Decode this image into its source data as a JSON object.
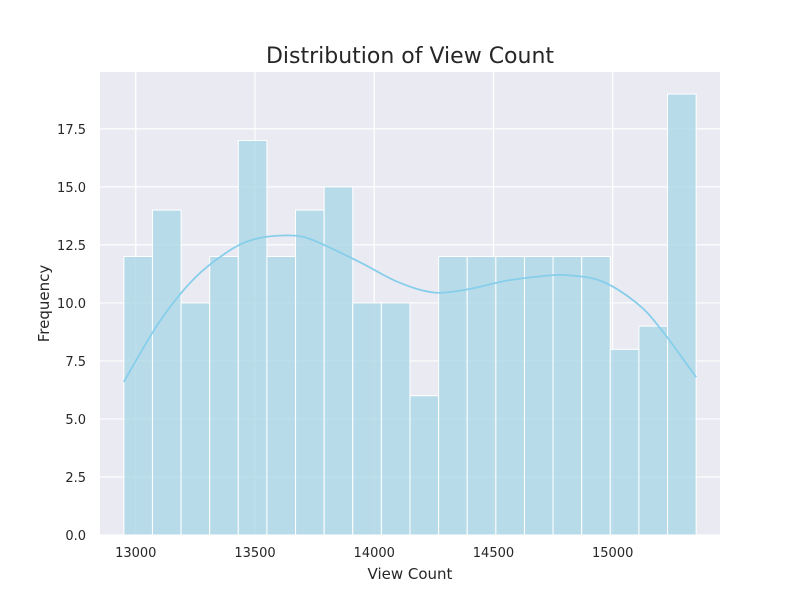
{
  "chart_data": {
    "type": "bar",
    "title": "Distribution of View Count",
    "xlabel": "View Count",
    "ylabel": "Frequency",
    "bins": [
      {
        "x0": 12950,
        "x1": 13070,
        "count": 12
      },
      {
        "x0": 13070,
        "x1": 13190,
        "count": 14
      },
      {
        "x0": 13190,
        "x1": 13310,
        "count": 10
      },
      {
        "x0": 13310,
        "x1": 13430,
        "count": 12
      },
      {
        "x0": 13430,
        "x1": 13550,
        "count": 17
      },
      {
        "x0": 13550,
        "x1": 13670,
        "count": 12
      },
      {
        "x0": 13670,
        "x1": 13790,
        "count": 14
      },
      {
        "x0": 13790,
        "x1": 13910,
        "count": 15
      },
      {
        "x0": 13910,
        "x1": 14030,
        "count": 10
      },
      {
        "x0": 14030,
        "x1": 14150,
        "count": 10
      },
      {
        "x0": 14150,
        "x1": 14270,
        "count": 6
      },
      {
        "x0": 14270,
        "x1": 14390,
        "count": 12
      },
      {
        "x0": 14390,
        "x1": 14510,
        "count": 12
      },
      {
        "x0": 14510,
        "x1": 14630,
        "count": 12
      },
      {
        "x0": 14630,
        "x1": 14750,
        "count": 12
      },
      {
        "x0": 14750,
        "x1": 14870,
        "count": 12
      },
      {
        "x0": 14870,
        "x1": 14990,
        "count": 12
      },
      {
        "x0": 14990,
        "x1": 15110,
        "count": 8
      },
      {
        "x0": 15110,
        "x1": 15230,
        "count": 9
      },
      {
        "x0": 15230,
        "x1": 15350,
        "count": 19
      }
    ],
    "kde": {
      "x": [
        12950,
        13100,
        13250,
        13400,
        13500,
        13600,
        13700,
        13800,
        13950,
        14100,
        14250,
        14400,
        14550,
        14700,
        14800,
        14950,
        15100,
        15200,
        15350
      ],
      "y": [
        6.6,
        9.2,
        11.1,
        12.3,
        12.75,
        12.9,
        12.85,
        12.45,
        11.7,
        10.9,
        10.45,
        10.6,
        10.95,
        11.15,
        11.2,
        10.95,
        10.0,
        8.9,
        6.8
      ]
    },
    "xlim": [
      12850,
      15450
    ],
    "ylim": [
      0,
      19.95
    ],
    "xticks": [
      13000,
      13500,
      14000,
      14500,
      15000
    ],
    "xtick_labels": [
      "13000",
      "13500",
      "14000",
      "14500",
      "15000"
    ],
    "yticks": [
      0,
      2.5,
      5,
      7.5,
      10,
      12.5,
      15,
      17.5
    ],
    "ytick_labels": [
      "0.0",
      "2.5",
      "5.0",
      "7.5",
      "10.0",
      "12.5",
      "15.0",
      "17.5"
    ],
    "grid": true,
    "colors": {
      "bar_fill": "#add8e6",
      "bar_stroke": "#ffffff",
      "kde_line": "#87ceeb",
      "plot_bg": "#eaeaf2",
      "grid": "#ffffff",
      "text": "#262626"
    }
  }
}
